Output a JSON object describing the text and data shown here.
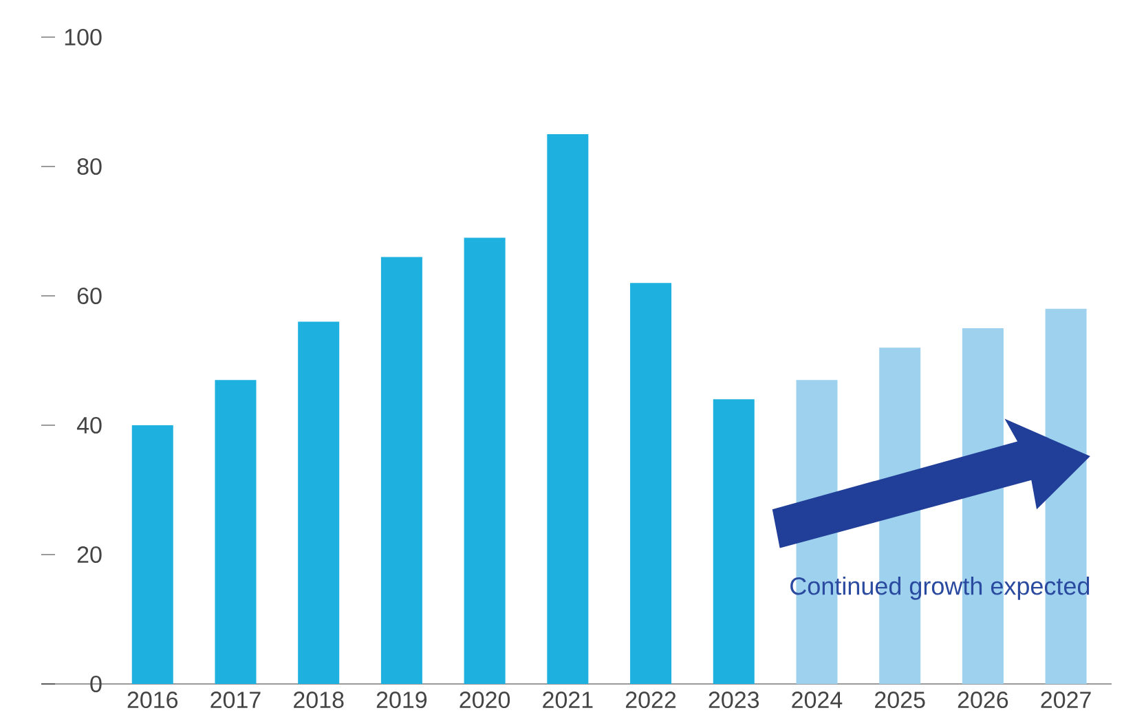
{
  "chart_data": {
    "type": "bar",
    "categories": [
      "2016",
      "2017",
      "2018",
      "2019",
      "2020",
      "2021",
      "2022",
      "2023",
      "2024",
      "2025",
      "2026",
      "2027"
    ],
    "values": [
      40,
      47,
      56,
      66,
      69,
      85,
      62,
      44,
      47,
      52,
      55,
      58
    ],
    "colors": [
      "#1eb0de",
      "#1eb0de",
      "#1eb0de",
      "#1eb0de",
      "#1eb0de",
      "#1eb0de",
      "#1eb0de",
      "#1eb0de",
      "#9dd1ee",
      "#9dd1ee",
      "#9dd1ee",
      "#9dd1ee"
    ],
    "ylim": [
      0,
      100
    ],
    "yticks": [
      0,
      20,
      40,
      60,
      80,
      100
    ],
    "annotations": [
      "Continued growth expected"
    ]
  }
}
